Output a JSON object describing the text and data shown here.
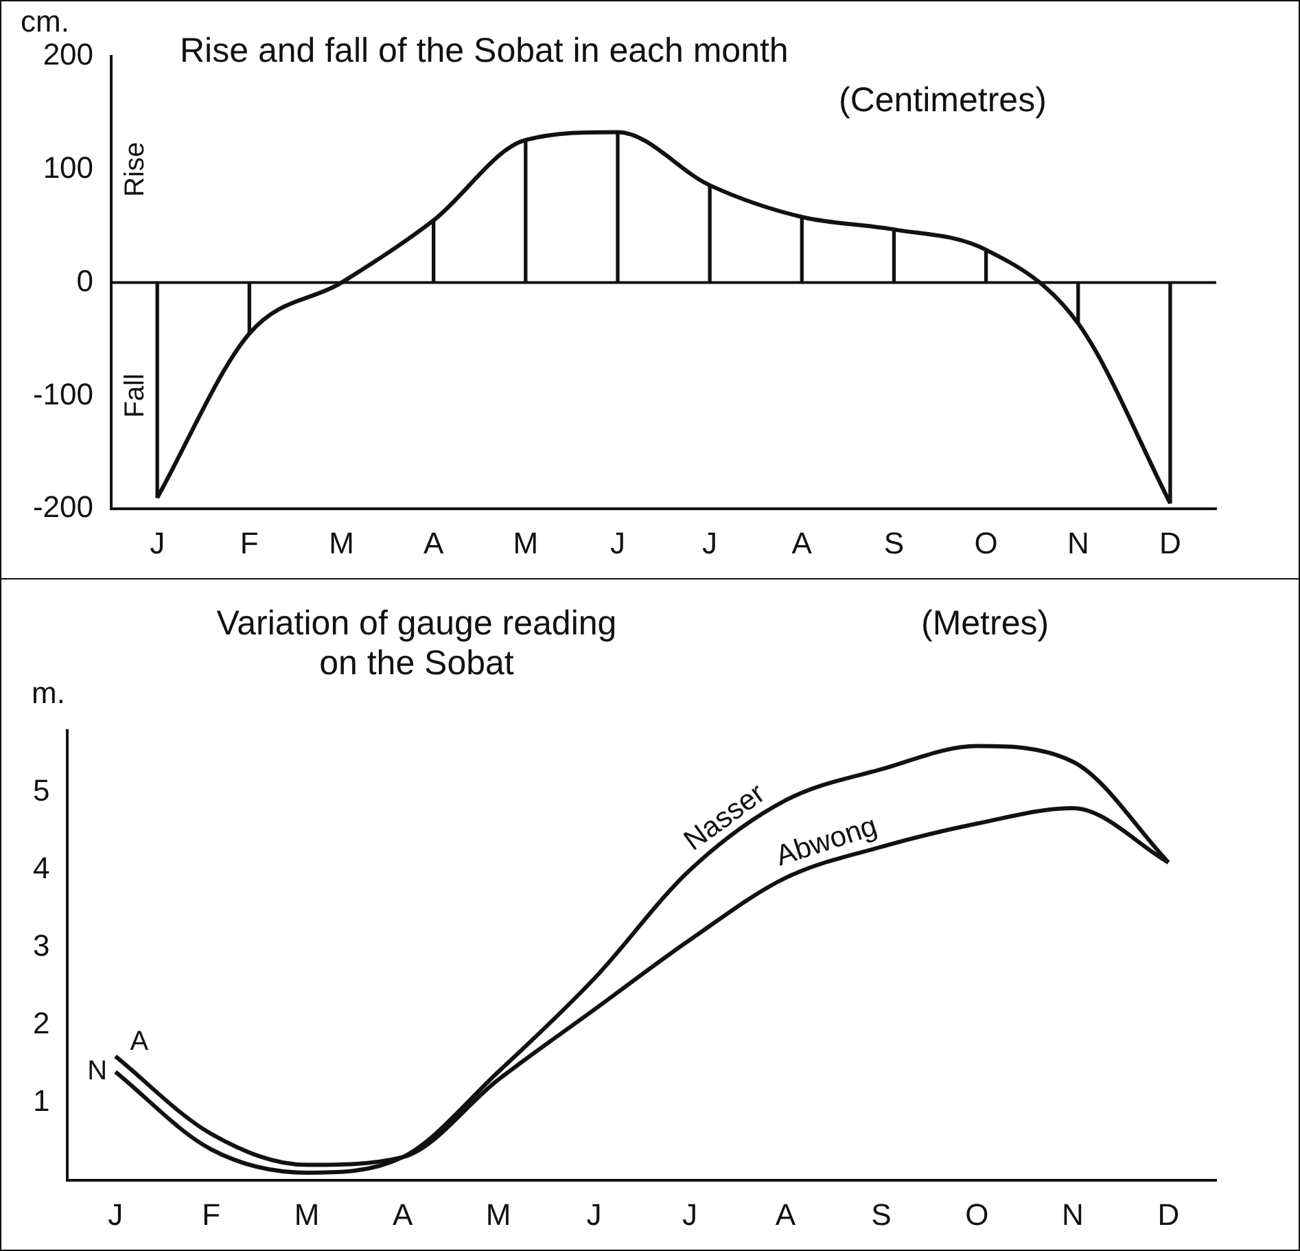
{
  "chart_data": [
    {
      "type": "bar",
      "title": "Rise and fall of the Sobat in each month",
      "subtitle": "(Centimetres)",
      "ylabel": "cm.",
      "categories": [
        "J",
        "F",
        "M",
        "A",
        "M",
        "J",
        "J",
        "A",
        "S",
        "O",
        "N",
        "D"
      ],
      "series": [
        {
          "color": "#111111",
          "values": [
            -190,
            -45,
            0,
            55,
            126,
            133,
            86,
            58,
            47,
            29,
            -36,
            -195
          ]
        },
        {
          "type": "line",
          "color": "#111111",
          "values": [
            -190,
            -45,
            0,
            55,
            126,
            133,
            86,
            58,
            47,
            29,
            -36,
            -195
          ]
        }
      ],
      "ylim": [
        -200,
        200
      ],
      "yticks": [
        -200,
        -100,
        0,
        100,
        200
      ],
      "ref_lines": [
        {
          "axis": "y",
          "value": 0
        }
      ],
      "annotations": [
        "Rise",
        "Fall"
      ],
      "grid": false,
      "legend": false,
      "marker": "none"
    },
    {
      "type": "line",
      "title": "Variation of gauge reading on the Sobat",
      "subtitle": "(Metres)",
      "ylabel": "m.",
      "categories": [
        "J",
        "F",
        "M",
        "A",
        "M",
        "J",
        "J",
        "A",
        "S",
        "O",
        "N",
        "D"
      ],
      "series": [
        {
          "name": "Nasser",
          "color": "#111111",
          "values": [
            1.4,
            0.4,
            0.1,
            0.3,
            1.4,
            2.6,
            4.0,
            4.9,
            5.3,
            5.6,
            5.4,
            4.1
          ]
        },
        {
          "name": "Abwong",
          "color": "#111111",
          "values": [
            1.6,
            0.6,
            0.2,
            0.3,
            1.3,
            2.2,
            3.1,
            3.9,
            4.3,
            4.6,
            4.8,
            4.1
          ]
        }
      ],
      "ylim": [
        0,
        5.8
      ],
      "yticks": [
        1,
        2,
        3,
        4,
        5
      ],
      "annotations": [
        {
          "text": "N",
          "x": "J",
          "y": 1.4
        },
        {
          "text": "A",
          "x": "J",
          "y": 1.6
        }
      ],
      "grid": false,
      "legend": false,
      "marker": "none"
    }
  ]
}
